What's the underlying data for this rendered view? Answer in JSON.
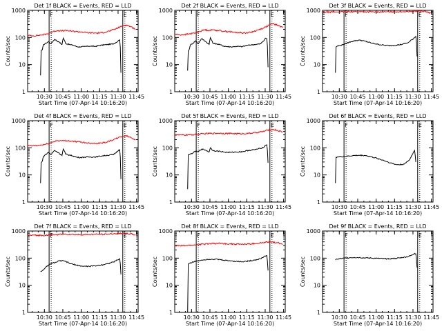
{
  "shared": {
    "ylabel": "Counts/sec",
    "xlabel": "Start Time (07-Apr-14 10:16:20)",
    "x_tick_labels": [
      "10:30",
      "10:45",
      "11:00",
      "11:15",
      "11:30",
      "11:45"
    ],
    "y_tick_labels": [
      "1",
      "10",
      "100",
      "1000"
    ],
    "marker_label": "F",
    "marker_label_end": "E",
    "colors": {
      "events": "#000000",
      "lld": "#ff0000",
      "axes": "#000000"
    }
  },
  "chart_data": [
    {
      "type": "line",
      "title": "Det 1f BLACK = Events, RED = LLD",
      "ylim": [
        1,
        1000
      ],
      "yscale": "log",
      "x_range_minutes": [
        0,
        90
      ],
      "markers_minutes": [
        17.5,
        77.5
      ],
      "series": [
        {
          "key": "events",
          "x": [
            10.5,
            11,
            12,
            13,
            15,
            17,
            19,
            22,
            25,
            28,
            29,
            31,
            34,
            37,
            40,
            43,
            46,
            50,
            55,
            60,
            65,
            70,
            73,
            74,
            75,
            76
          ],
          "values": [
            4,
            32,
            35,
            55,
            62,
            70,
            58,
            85,
            70,
            55,
            95,
            60,
            55,
            52,
            46,
            45,
            46,
            48,
            47,
            52,
            55,
            58,
            70,
            78,
            82,
            5
          ]
        },
        {
          "key": "lld",
          "x": [
            0,
            4,
            8,
            12,
            16,
            20,
            24,
            28,
            32,
            36,
            40,
            44,
            48,
            52,
            56,
            60,
            64,
            68,
            72,
            76,
            80,
            84,
            88
          ],
          "values": [
            120,
            115,
            118,
            125,
            135,
            160,
            180,
            175,
            180,
            170,
            165,
            160,
            150,
            148,
            145,
            148,
            160,
            180,
            210,
            250,
            290,
            250,
            200
          ]
        }
      ]
    },
    {
      "type": "line",
      "title": "Det 2f BLACK = Events, RED = LLD",
      "ylim": [
        1,
        1000
      ],
      "yscale": "log",
      "x_range_minutes": [
        0,
        90
      ],
      "markers_minutes": [
        17.5,
        77.5
      ],
      "series": [
        {
          "key": "events",
          "x": [
            10.5,
            11,
            12,
            13,
            15,
            17,
            19,
            22,
            25,
            28,
            29,
            31,
            34,
            37,
            40,
            43,
            46,
            50,
            55,
            60,
            65,
            70,
            73,
            74,
            75,
            76
          ],
          "values": [
            6,
            32,
            38,
            55,
            62,
            75,
            58,
            90,
            72,
            55,
            98,
            62,
            58,
            54,
            48,
            46,
            45,
            47,
            46,
            52,
            55,
            58,
            80,
            95,
            90,
            8
          ]
        },
        {
          "key": "lld",
          "x": [
            0,
            4,
            8,
            12,
            16,
            20,
            24,
            28,
            32,
            36,
            40,
            44,
            48,
            52,
            56,
            60,
            64,
            68,
            72,
            76,
            80,
            84,
            88
          ],
          "values": [
            130,
            125,
            128,
            135,
            145,
            165,
            190,
            185,
            190,
            180,
            170,
            165,
            155,
            150,
            148,
            150,
            165,
            190,
            220,
            270,
            320,
            280,
            230
          ]
        }
      ]
    },
    {
      "type": "line",
      "title": "Det 3f BLACK = Events, RED = LLD",
      "ylim": [
        1,
        1000
      ],
      "yscale": "log",
      "x_range_minutes": [
        0,
        90
      ],
      "markers_minutes": [
        17.5,
        77.5
      ],
      "series": [
        {
          "key": "events",
          "x": [
            10.5,
            11,
            12,
            14,
            17,
            20,
            23,
            26,
            30,
            35,
            40,
            45,
            50,
            55,
            60,
            65,
            70,
            74,
            76,
            77
          ],
          "values": [
            5,
            45,
            48,
            50,
            55,
            62,
            70,
            75,
            80,
            72,
            62,
            56,
            52,
            50,
            52,
            56,
            65,
            90,
            110,
            20
          ]
        },
        {
          "key": "lld",
          "x": [
            0,
            6,
            12,
            18,
            24,
            30,
            36,
            42,
            48,
            54,
            60,
            66,
            72,
            78,
            84,
            88
          ],
          "values": [
            850,
            860,
            870,
            880,
            900,
            890,
            880,
            875,
            870,
            880,
            890,
            900,
            920,
            950,
            900,
            780
          ]
        }
      ]
    },
    {
      "type": "line",
      "title": "Det 4f BLACK = Events, RED = LLD",
      "ylim": [
        1,
        1000
      ],
      "yscale": "log",
      "x_range_minutes": [
        0,
        90
      ],
      "markers_minutes": [
        17.5,
        77.5
      ],
      "series": [
        {
          "key": "events",
          "x": [
            10.5,
            11,
            12,
            13,
            15,
            17,
            19,
            22,
            25,
            28,
            29,
            31,
            34,
            37,
            40,
            43,
            46,
            50,
            55,
            60,
            65,
            70,
            73,
            74,
            75,
            76
          ],
          "values": [
            5,
            28,
            32,
            50,
            58,
            68,
            56,
            80,
            66,
            52,
            90,
            58,
            54,
            50,
            45,
            44,
            45,
            46,
            46,
            50,
            53,
            56,
            72,
            82,
            85,
            7
          ]
        },
        {
          "key": "lld",
          "x": [
            0,
            4,
            8,
            12,
            16,
            20,
            24,
            28,
            32,
            36,
            40,
            44,
            48,
            52,
            56,
            60,
            64,
            68,
            72,
            76,
            80,
            84,
            88
          ],
          "values": [
            120,
            118,
            120,
            128,
            138,
            160,
            185,
            180,
            185,
            175,
            168,
            162,
            152,
            148,
            146,
            150,
            162,
            185,
            215,
            255,
            280,
            240,
            195
          ]
        }
      ]
    },
    {
      "type": "line",
      "title": "Det 5f BLACK = Events, RED = LLD",
      "ylim": [
        1,
        1000
      ],
      "yscale": "log",
      "x_range_minutes": [
        0,
        90
      ],
      "markers_minutes": [
        17.5,
        77.5
      ],
      "series": [
        {
          "key": "events",
          "x": [
            10.5,
            11,
            12,
            13,
            15,
            17,
            19,
            22,
            25,
            28,
            29,
            31,
            34,
            37,
            40,
            43,
            46,
            50,
            55,
            60,
            65,
            70,
            73,
            74,
            75,
            76
          ],
          "values": [
            3,
            55,
            56,
            60,
            65,
            75,
            70,
            90,
            82,
            70,
            100,
            80,
            76,
            74,
            70,
            68,
            68,
            70,
            72,
            80,
            85,
            95,
            110,
            125,
            130,
            28
          ]
        },
        {
          "key": "lld",
          "x": [
            0,
            6,
            12,
            18,
            24,
            30,
            36,
            42,
            48,
            54,
            60,
            66,
            72,
            76,
            80,
            84,
            88
          ],
          "values": [
            300,
            295,
            300,
            310,
            330,
            340,
            345,
            340,
            335,
            330,
            340,
            360,
            400,
            450,
            480,
            430,
            380
          ]
        }
      ]
    },
    {
      "type": "line",
      "title": "Det 6f BLACK = Events, RED = LLD",
      "ylim": [
        1,
        1000
      ],
      "yscale": "log",
      "x_range_minutes": [
        0,
        90
      ],
      "markers_minutes": [
        17.5,
        77.5
      ],
      "series": [
        {
          "key": "events",
          "x": [
            10.5,
            11,
            12,
            15,
            18,
            22,
            26,
            30,
            35,
            40,
            45,
            50,
            55,
            60,
            65,
            68,
            71,
            73,
            75,
            76
          ],
          "values": [
            5,
            45,
            46,
            47,
            48,
            50,
            52,
            53,
            52,
            46,
            40,
            34,
            28,
            24,
            24,
            28,
            36,
            55,
            80,
            30
          ]
        }
      ]
    },
    {
      "type": "line",
      "title": "Det 7f BLACK = Events, RED = LLD",
      "ylim": [
        1,
        1000
      ],
      "yscale": "log",
      "x_range_minutes": [
        0,
        90
      ],
      "markers_minutes": [
        17.5,
        77.5
      ],
      "series": [
        {
          "key": "events",
          "x": [
            10.5,
            11,
            12,
            14,
            17,
            20,
            23,
            26,
            30,
            35,
            40,
            45,
            50,
            55,
            60,
            65,
            70,
            73,
            75,
            76
          ],
          "values": [
            33,
            32,
            35,
            42,
            55,
            65,
            70,
            80,
            78,
            62,
            55,
            50,
            50,
            52,
            56,
            62,
            72,
            85,
            95,
            25
          ]
        },
        {
          "key": "lld",
          "x": [
            0,
            6,
            12,
            18,
            24,
            30,
            36,
            42,
            48,
            54,
            60,
            66,
            72,
            78,
            84,
            88
          ],
          "values": [
            680,
            700,
            690,
            720,
            740,
            760,
            750,
            730,
            740,
            750,
            760,
            770,
            800,
            830,
            780,
            700
          ]
        }
      ]
    },
    {
      "type": "line",
      "title": "Det 8f BLACK = Events, RED = LLD",
      "ylim": [
        1,
        1000
      ],
      "yscale": "log",
      "x_range_minutes": [
        0,
        90
      ],
      "markers_minutes": [
        17.5,
        77.5
      ],
      "series": [
        {
          "key": "events",
          "x": [
            10.5,
            11,
            12,
            15,
            18,
            22,
            26,
            30,
            35,
            40,
            45,
            50,
            55,
            60,
            65,
            70,
            73,
            75,
            76
          ],
          "values": [
            1,
            60,
            65,
            72,
            78,
            85,
            90,
            92,
            90,
            84,
            80,
            76,
            74,
            78,
            85,
            95,
            115,
            125,
            35
          ]
        },
        {
          "key": "lld",
          "x": [
            0,
            6,
            12,
            18,
            24,
            30,
            36,
            42,
            48,
            54,
            60,
            66,
            72,
            78,
            84,
            88
          ],
          "values": [
            290,
            285,
            295,
            310,
            330,
            345,
            350,
            340,
            330,
            325,
            330,
            345,
            370,
            400,
            370,
            320
          ]
        }
      ]
    },
    {
      "type": "line",
      "title": "Det 9f BLACK = Events, RED = LLD",
      "ylim": [
        1,
        1000
      ],
      "yscale": "log",
      "x_range_minutes": [
        0,
        90
      ],
      "markers_minutes": [
        17.5,
        77.5
      ],
      "series": [
        {
          "key": "events",
          "x": [
            10.5,
            11,
            12,
            15,
            18,
            22,
            26,
            30,
            35,
            40,
            45,
            50,
            55,
            60,
            65,
            70,
            73,
            75,
            76,
            77
          ],
          "values": [
            85,
            90,
            92,
            96,
            100,
            104,
            106,
            105,
            102,
            100,
            98,
            95,
            95,
            98,
            105,
            115,
            130,
            150,
            145,
            45
          ]
        }
      ]
    }
  ]
}
